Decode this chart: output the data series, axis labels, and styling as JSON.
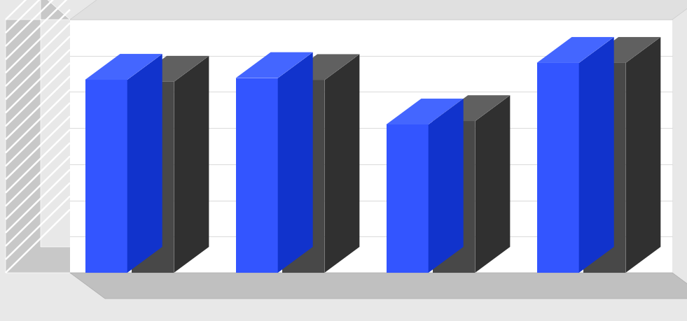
{
  "adm_values": [
    686,
    692,
    527,
    746
  ],
  "des_values": [
    679,
    685,
    539,
    746
  ],
  "adm_front": "#3355FF",
  "adm_top": "#4466FF",
  "adm_side": "#1133CC",
  "des_front": "#484848",
  "des_top": "#606060",
  "des_side": "#303030",
  "wall_bg": "#FFFFFF",
  "wall_hatch_color": "#AAAAAA",
  "floor_color": "#C8C8C8",
  "wall_side_color": "#B0B0B0",
  "bg_color": "#E8E8E8",
  "grid_color": "#DDDDDD",
  "ymax": 900,
  "n_groups": 4
}
